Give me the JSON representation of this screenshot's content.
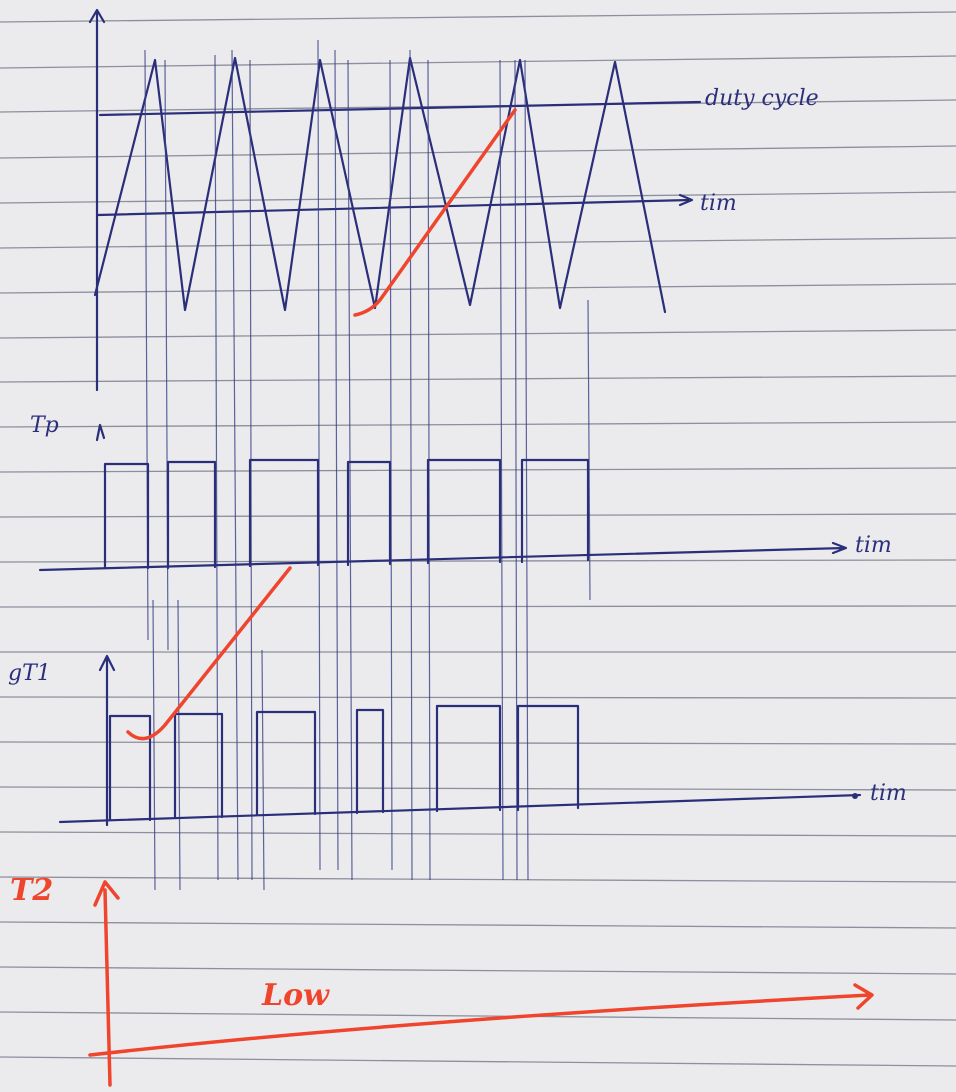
{
  "graph_top": {
    "reference_label": "duty cycle",
    "axis_label": "tim"
  },
  "graph_middle": {
    "y_label": "Tp",
    "axis_label": "tim"
  },
  "graph_bottom": {
    "y_label": "gT1",
    "axis_label": "tim"
  },
  "graph_red": {
    "y_label": "T2",
    "note": "Low"
  }
}
